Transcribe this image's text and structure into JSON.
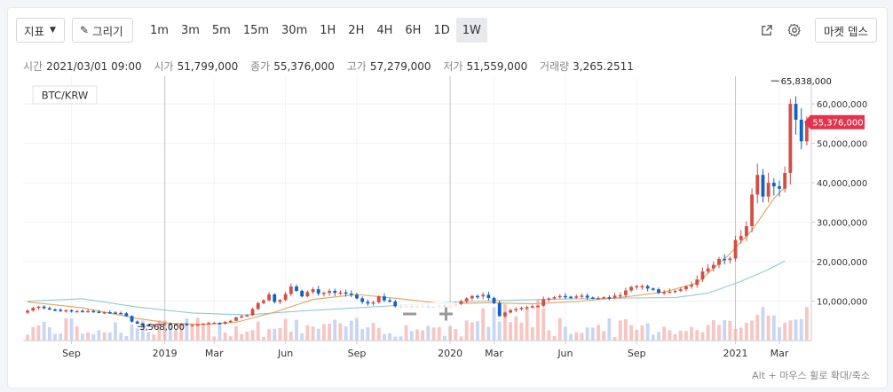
{
  "toolbar": {
    "indicator_label": "지표",
    "draw_label": "그리기",
    "timeframes": [
      "1m",
      "3m",
      "5m",
      "15m",
      "30m",
      "1H",
      "2H",
      "4H",
      "6H",
      "1D",
      "1W"
    ],
    "active_timeframe": "1W",
    "market_depth_label": "마켓 뎁스"
  },
  "ohlc": {
    "time_label": "시간",
    "time_value": "2021/03/01 09:00",
    "open_label": "시가",
    "open_value": "51,799,000",
    "close_label": "종가",
    "close_value": "55,376,000",
    "high_label": "고가",
    "high_value": "57,279,000",
    "low_label": "저가",
    "low_value": "51,559,000",
    "volume_label": "거래량",
    "volume_value": "3,265.2511"
  },
  "hint": "Alt + 마우스 휠로 확대/축소",
  "colors": {
    "up": "#d24f45",
    "down": "#1261c4",
    "ma_long": "#e0a45c",
    "ma_short": "#8fcad6",
    "vol_up": "#f7c5c2",
    "vol_down": "#c9d6f2"
  },
  "chart_data": {
    "type": "candlestick",
    "symbol": "BTC/KRW",
    "interval": "1W",
    "y_ticks": [
      "10,000,000",
      "20,000,000",
      "30,000,000",
      "40,000,000",
      "50,000,000",
      "60,000,000"
    ],
    "ylim": [
      0,
      67000000
    ],
    "x_ticks": [
      {
        "label": "Sep",
        "week": 8
      },
      {
        "label": "2019",
        "week": 25
      },
      {
        "label": "Mar",
        "week": 34
      },
      {
        "label": "Jun",
        "week": 47
      },
      {
        "label": "Sep",
        "week": 60
      },
      {
        "label": "2020",
        "week": 77
      },
      {
        "label": "Mar",
        "week": 85
      },
      {
        "label": "Jun",
        "week": 98
      },
      {
        "label": "Sep",
        "week": 111
      },
      {
        "label": "2021",
        "week": 129
      },
      {
        "label": "Mar",
        "week": 137
      }
    ],
    "vlines_weeks": [
      25,
      77,
      129
    ],
    "last_price": "55,376,000",
    "last_value": 55376000,
    "high_marker": {
      "label": "65,838,000",
      "value": 65838000,
      "week": 135
    },
    "low_marker": {
      "label": "3,568,000",
      "value": 3568000,
      "week": 22
    },
    "close_prices": [
      7600000,
      8300000,
      8600000,
      8200000,
      7900000,
      7800000,
      7600000,
      7700000,
      7400000,
      7500000,
      7400000,
      7500000,
      7300000,
      7200000,
      7200000,
      7100000,
      7000000,
      6900000,
      6200000,
      4800000,
      4300000,
      4000000,
      3700000,
      4100000,
      4200000,
      4300000,
      4000000,
      4100000,
      4200000,
      3900000,
      4000000,
      4100000,
      4300000,
      4400000,
      4500000,
      4300000,
      4700000,
      5000000,
      5900000,
      6200000,
      6400000,
      8000000,
      9500000,
      10200000,
      11700000,
      9800000,
      10300000,
      11800000,
      13700000,
      12600000,
      11200000,
      12300000,
      13000000,
      11900000,
      12100000,
      12600000,
      12100000,
      12200000,
      11900000,
      11600000,
      10700000,
      9800000,
      9400000,
      9700000,
      11200000,
      10200000,
      9900000,
      8700000,
      8400000,
      8800000,
      8600000,
      8700000,
      8800000,
      8400000,
      8600000,
      8900000,
      8700000,
      8800000,
      9300000,
      10000000,
      10700000,
      11300000,
      11200000,
      11600000,
      10800000,
      9500000,
      6200000,
      7100000,
      7700000,
      8000000,
      8300000,
      8500000,
      8700000,
      8800000,
      10500000,
      10700000,
      11000000,
      11300000,
      11100000,
      11000000,
      11200000,
      11400000,
      10900000,
      10700000,
      10800000,
      11000000,
      10800000,
      11400000,
      11500000,
      12700000,
      13600000,
      13800000,
      13800000,
      13200000,
      13000000,
      12100000,
      12300000,
      12400000,
      12600000,
      13000000,
      13700000,
      14100000,
      15500000,
      17500000,
      18300000,
      19200000,
      20700000,
      20400000,
      20800000,
      25500000,
      26500000,
      29000000,
      37000000,
      42000000,
      36500000,
      40000000,
      39100000,
      38500000,
      42500000,
      60000000,
      56000000,
      50500000,
      55376000
    ],
    "ma_long": [
      {
        "week": 0,
        "value": 9800000
      },
      {
        "week": 10,
        "value": 8300000
      },
      {
        "week": 20,
        "value": 5600000
      },
      {
        "week": 26,
        "value": 4400000
      },
      {
        "week": 32,
        "value": 4100000
      },
      {
        "week": 38,
        "value": 4600000
      },
      {
        "week": 45,
        "value": 7200000
      },
      {
        "week": 52,
        "value": 10400000
      },
      {
        "week": 60,
        "value": 11700000
      },
      {
        "week": 68,
        "value": 10600000
      },
      {
        "week": 76,
        "value": 9300000
      },
      {
        "week": 84,
        "value": 9600000
      },
      {
        "week": 92,
        "value": 9300000
      },
      {
        "week": 100,
        "value": 9900000
      },
      {
        "week": 108,
        "value": 10900000
      },
      {
        "week": 116,
        "value": 12300000
      },
      {
        "week": 122,
        "value": 14600000
      },
      {
        "week": 128,
        "value": 22000000
      },
      {
        "week": 132,
        "value": 28000000
      },
      {
        "week": 136,
        "value": 36000000
      },
      {
        "week": 138,
        "value": 38800000
      }
    ],
    "ma_short": [
      {
        "week": 0,
        "value": 10000000
      },
      {
        "week": 10,
        "value": 10600000
      },
      {
        "week": 20,
        "value": 8500000
      },
      {
        "week": 30,
        "value": 7000000
      },
      {
        "week": 40,
        "value": 6500000
      },
      {
        "week": 50,
        "value": 7500000
      },
      {
        "week": 60,
        "value": 8300000
      },
      {
        "week": 70,
        "value": 9100000
      },
      {
        "week": 80,
        "value": 9900000
      },
      {
        "week": 90,
        "value": 10300000
      },
      {
        "week": 100,
        "value": 10600000
      },
      {
        "week": 110,
        "value": 10800000
      },
      {
        "week": 118,
        "value": 10900000
      },
      {
        "week": 124,
        "value": 12000000
      },
      {
        "week": 130,
        "value": 15000000
      },
      {
        "week": 135,
        "value": 18000000
      },
      {
        "week": 138,
        "value": 20200000
      }
    ]
  }
}
